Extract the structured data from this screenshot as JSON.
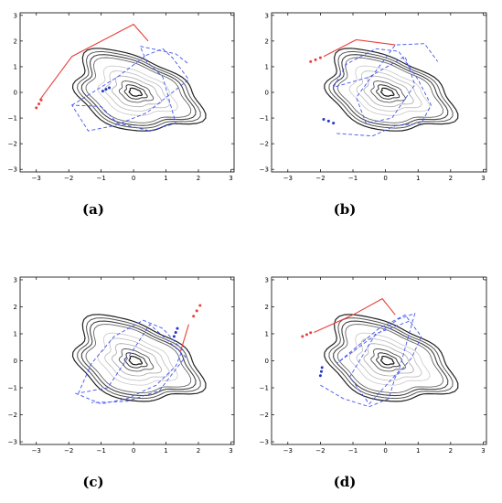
{
  "chart_data": [
    {
      "type": "line",
      "panel_label": "(a)",
      "xlim": [
        -3.5,
        3.1
      ],
      "ylim": [
        -3.1,
        3.1
      ],
      "xticks": [
        -3,
        -2,
        -1,
        0,
        1,
        2,
        3
      ],
      "yticks": [
        -3,
        -2,
        -1,
        0,
        1,
        2,
        3
      ],
      "grid": false,
      "series": [
        {
          "role": "red-path",
          "color": "#e8403a",
          "style": "solid",
          "x": [
            -2.9,
            -1.9,
            0.0,
            0.45
          ],
          "y": [
            -0.3,
            1.4,
            2.65,
            2.0
          ]
        },
        {
          "role": "red-dots",
          "color": "#e8403a",
          "style": "points",
          "x": [
            -2.85,
            -2.92,
            -3.0
          ],
          "y": [
            -0.3,
            -0.45,
            -0.6
          ]
        },
        {
          "role": "blue-dots",
          "color": "#2233cc",
          "style": "points",
          "x": [
            -0.95,
            -0.85,
            -0.75
          ],
          "y": [
            0.05,
            0.12,
            0.18
          ]
        },
        {
          "role": "blue-dashed",
          "color": "#4455ee",
          "style": "dashed",
          "x": [
            -1.9,
            -0.5,
            0.4,
            0.9,
            1.2,
            1.7,
            1.1,
            0.4,
            -0.6,
            -1.4,
            -1.9,
            -1.0,
            -0.5,
            0.5,
            1.3,
            0.9,
            0.4,
            0.2,
            1.3,
            1.7
          ],
          "y": [
            -0.5,
            0.6,
            1.45,
            1.7,
            1.35,
            0.5,
            -0.1,
            -0.8,
            -1.3,
            -1.5,
            -0.5,
            -0.55,
            -1.2,
            -1.5,
            -1.2,
            0.6,
            1.2,
            1.8,
            1.5,
            1.1
          ]
        }
      ]
    },
    {
      "type": "line",
      "panel_label": "(b)",
      "xlim": [
        -3.5,
        3.1
      ],
      "ylim": [
        -3.1,
        3.1
      ],
      "xticks": [
        -3,
        -2,
        -1,
        0,
        1,
        2,
        3
      ],
      "yticks": [
        -3,
        -2,
        -1,
        0,
        1,
        2,
        3
      ],
      "grid": false,
      "series": [
        {
          "role": "red-path",
          "color": "#e8403a",
          "style": "solid",
          "x": [
            -1.9,
            -0.9,
            0.3
          ],
          "y": [
            1.4,
            2.05,
            1.85
          ]
        },
        {
          "role": "red-dots",
          "color": "#e8403a",
          "style": "points",
          "x": [
            -2.3,
            -2.15,
            -2.0
          ],
          "y": [
            1.2,
            1.27,
            1.35
          ]
        },
        {
          "role": "blue-dots",
          "color": "#2233cc",
          "style": "points",
          "x": [
            -1.9,
            -1.75,
            -1.6
          ],
          "y": [
            -1.05,
            -1.12,
            -1.2
          ]
        },
        {
          "role": "blue-dashed",
          "color": "#4455ee",
          "style": "dashed",
          "x": [
            -1.5,
            -0.4,
            0.3,
            1.1,
            1.4,
            1.0,
            0.4,
            -0.3,
            -1.2,
            -1.6,
            -0.5,
            0.6,
            0.9,
            0.2,
            -0.6,
            -0.9,
            0.3,
            1.2,
            1.6
          ],
          "y": [
            -1.6,
            -1.7,
            -1.3,
            -1.2,
            -0.5,
            0.5,
            1.6,
            1.7,
            1.1,
            0.2,
            0.6,
            1.4,
            0.3,
            -1.0,
            -1.2,
            -0.2,
            1.85,
            1.9,
            1.2
          ]
        }
      ]
    },
    {
      "type": "line",
      "panel_label": "(c)",
      "xlim": [
        -3.5,
        3.1
      ],
      "ylim": [
        -3.1,
        3.1
      ],
      "xticks": [
        -3,
        -2,
        -1,
        0,
        1,
        2,
        3
      ],
      "yticks": [
        -3,
        -2,
        -1,
        0,
        1,
        2,
        3
      ],
      "grid": false,
      "series": [
        {
          "role": "red-path",
          "color": "#e8403a",
          "style": "solid",
          "x": [
            1.45,
            1.7
          ],
          "y": [
            0.35,
            1.35
          ]
        },
        {
          "role": "red-dots",
          "color": "#e8403a",
          "style": "points",
          "x": [
            1.85,
            1.95,
            2.05
          ],
          "y": [
            1.65,
            1.85,
            2.05
          ]
        },
        {
          "role": "blue-dots",
          "color": "#2233cc",
          "style": "points",
          "x": [
            1.25,
            1.3,
            1.35
          ],
          "y": [
            0.9,
            1.05,
            1.2
          ]
        },
        {
          "role": "blue-dashed",
          "color": "#4455ee",
          "style": "dashed",
          "x": [
            -1.8,
            -1.0,
            -0.2,
            0.7,
            1.3,
            1.5,
            0.9,
            0.3,
            -0.6,
            -1.3,
            -1.7,
            -0.8,
            0.1,
            0.5,
            1.1,
            1.6,
            0.8,
            -0.2,
            -1.3
          ],
          "y": [
            -1.2,
            -1.6,
            -1.4,
            -0.9,
            -0.2,
            0.4,
            1.2,
            1.5,
            0.9,
            -0.1,
            -1.2,
            -1.0,
            0.6,
            1.35,
            0.7,
            0.15,
            -1.1,
            -1.5,
            -1.55
          ]
        }
      ]
    },
    {
      "type": "line",
      "panel_label": "(d)",
      "xlim": [
        -3.5,
        3.1
      ],
      "ylim": [
        -3.1,
        3.1
      ],
      "xticks": [
        -3,
        -2,
        -1,
        0,
        1,
        2,
        3
      ],
      "yticks": [
        -3,
        -2,
        -1,
        0,
        1,
        2,
        3
      ],
      "grid": false,
      "series": [
        {
          "role": "red-path",
          "color": "#e8403a",
          "style": "solid",
          "x": [
            -2.2,
            -1.0,
            -0.1,
            0.3
          ],
          "y": [
            1.05,
            1.7,
            2.3,
            1.7
          ]
        },
        {
          "role": "red-dots",
          "color": "#e8403a",
          "style": "points",
          "x": [
            -2.55,
            -2.42,
            -2.3
          ],
          "y": [
            0.9,
            0.97,
            1.04
          ]
        },
        {
          "role": "blue-dots",
          "color": "#2233cc",
          "style": "points",
          "x": [
            -1.95,
            -1.97,
            -2.0
          ],
          "y": [
            -0.25,
            -0.4,
            -0.55
          ]
        },
        {
          "role": "blue-dashed",
          "color": "#4455ee",
          "style": "dashed",
          "x": [
            -2.0,
            -1.3,
            -0.5,
            0.1,
            0.3,
            0.8,
            1.1,
            0.6,
            -0.2,
            -0.9,
            -1.5,
            -0.6,
            0.4,
            0.9,
            0.4,
            -0.5,
            -1.1,
            -0.3,
            0.8
          ],
          "y": [
            -0.9,
            -1.4,
            -1.7,
            -1.4,
            -0.6,
            0.1,
            0.9,
            1.7,
            1.2,
            0.5,
            -0.1,
            0.7,
            1.55,
            1.75,
            -0.4,
            -1.6,
            -0.6,
            1.0,
            1.5
          ]
        }
      ]
    }
  ]
}
